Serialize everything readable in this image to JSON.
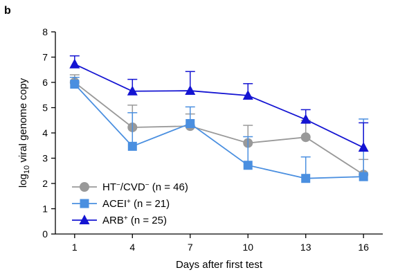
{
  "panel_label": "b",
  "chart_data": {
    "type": "line",
    "xlabel": "Days after first test",
    "ylabel": {
      "prefix": "log",
      "subscript": "10",
      "suffix": " viral genome copy"
    },
    "x": [
      1,
      4,
      7,
      10,
      13,
      16
    ],
    "x_ticks": [
      "1",
      "4",
      "7",
      "10",
      "13",
      "16"
    ],
    "y_ticks": [
      "0",
      "1",
      "2",
      "3",
      "4",
      "5",
      "6",
      "7",
      "8"
    ],
    "ylim": [
      0,
      8
    ],
    "xlim": [
      0,
      17
    ],
    "grid": false,
    "legend_position": "bottom-left",
    "series": [
      {
        "key": "htcvd",
        "legend": {
          "name": "HT",
          "sup1": "−",
          "mid": "/CVD",
          "sup2": "−",
          "n_label": " (n = 46)"
        },
        "color": "#999999",
        "marker": "circle",
        "values": [
          6.0,
          4.22,
          4.27,
          3.6,
          3.83,
          2.35
        ],
        "err_upper": [
          6.3,
          5.1,
          4.75,
          4.3,
          4.5,
          2.95
        ]
      },
      {
        "key": "acei",
        "legend": {
          "name": "ACEI",
          "sup1": "+",
          "mid": "",
          "sup2": "",
          "n_label": " (n = 21)"
        },
        "color": "#4a8fe0",
        "marker": "square",
        "values": [
          5.93,
          3.47,
          4.37,
          2.72,
          2.2,
          2.27
        ],
        "err_upper": [
          6.2,
          4.8,
          5.03,
          3.85,
          3.05,
          4.55
        ]
      },
      {
        "key": "arb",
        "legend": {
          "name": "ARB",
          "sup1": "+",
          "mid": "",
          "sup2": "",
          "n_label": " (n = 25)"
        },
        "color": "#1414d2",
        "marker": "triangle",
        "values": [
          6.72,
          5.65,
          5.67,
          5.48,
          4.53,
          3.42
        ],
        "err_upper": [
          7.05,
          6.12,
          6.43,
          5.95,
          4.92,
          4.4
        ]
      }
    ]
  }
}
